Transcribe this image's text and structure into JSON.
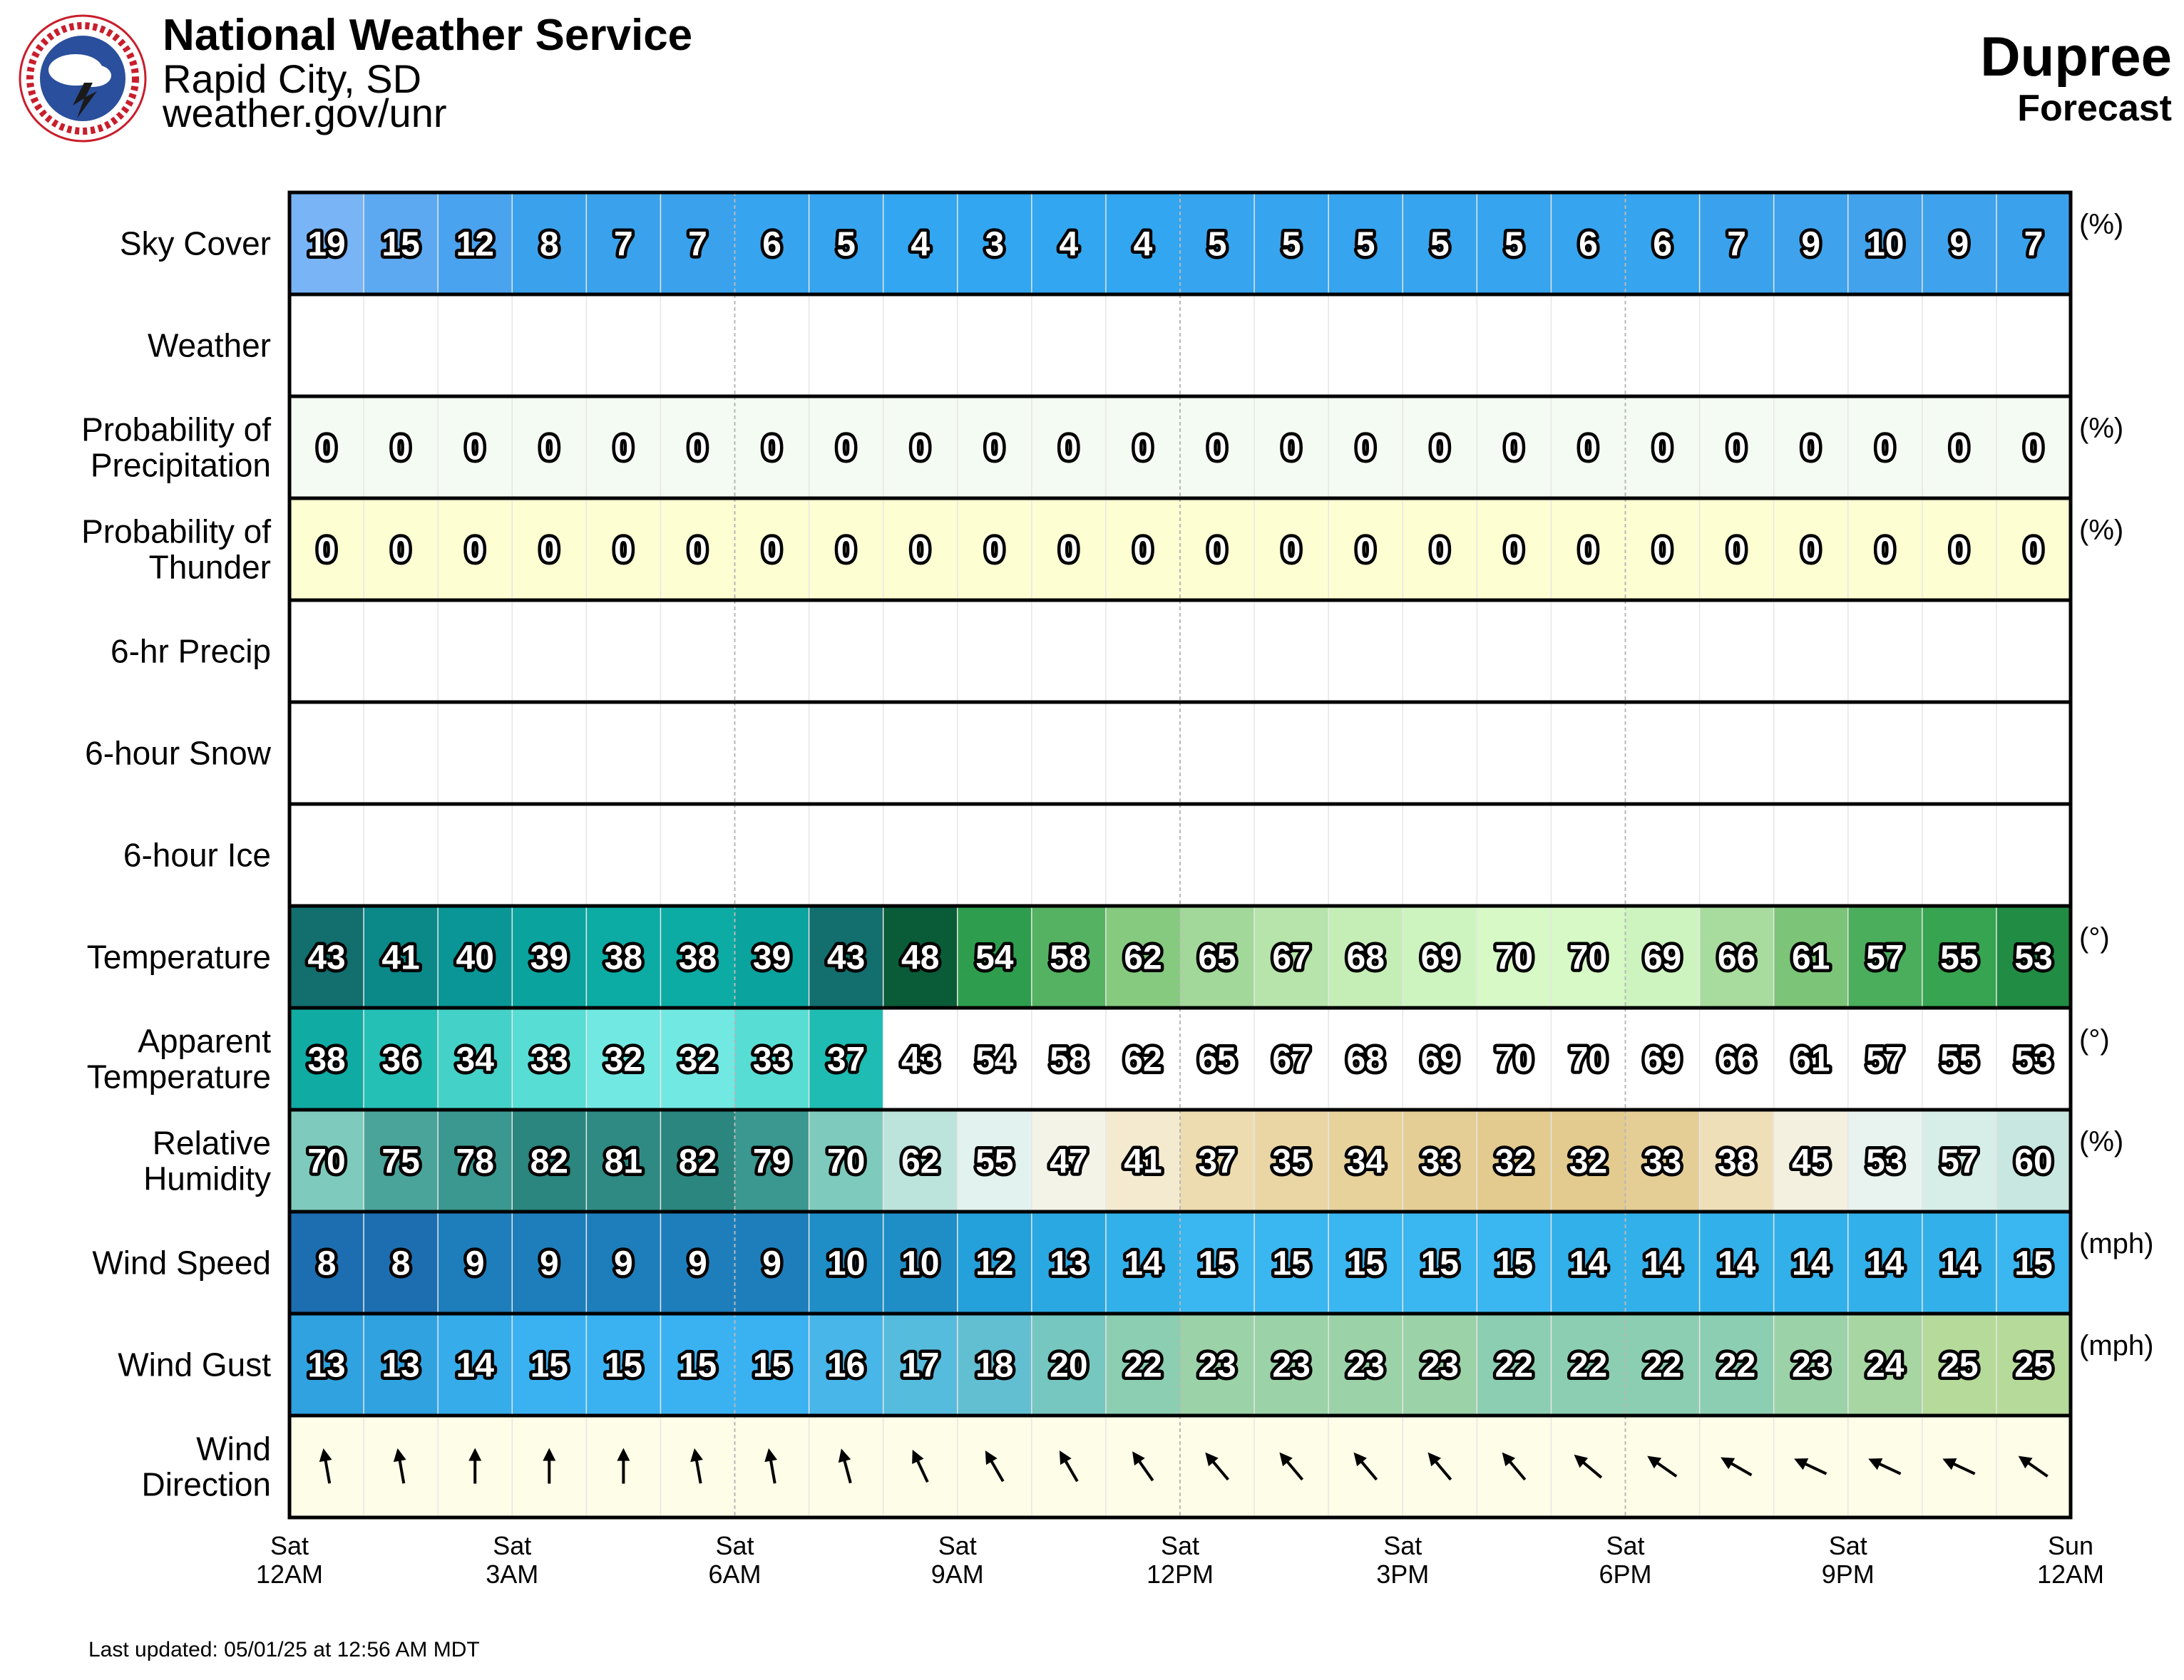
{
  "header": {
    "office": "National Weather Service",
    "city": "Rapid City, SD",
    "url": "weather.gov/unr",
    "location": "Dupree",
    "product": "Forecast"
  },
  "footer": {
    "updated": "Last updated: 05/01/25 at 12:56 AM MDT"
  },
  "chart_data": {
    "type": "table",
    "hours": 24,
    "x_ticks": [
      {
        "day": "Sat",
        "time": "12AM"
      },
      {
        "day": "Sat",
        "time": "3AM"
      },
      {
        "day": "Sat",
        "time": "6AM"
      },
      {
        "day": "Sat",
        "time": "9AM"
      },
      {
        "day": "Sat",
        "time": "12PM"
      },
      {
        "day": "Sat",
        "time": "3PM"
      },
      {
        "day": "Sat",
        "time": "6PM"
      },
      {
        "day": "Sat",
        "time": "9PM"
      },
      {
        "day": "Sun",
        "time": "12AM"
      }
    ],
    "rows": [
      {
        "id": "sky",
        "label": [
          "Sky Cover"
        ],
        "unit": "(%)",
        "values": [
          19,
          15,
          12,
          8,
          7,
          7,
          6,
          5,
          4,
          3,
          4,
          4,
          5,
          5,
          5,
          5,
          5,
          6,
          6,
          7,
          9,
          10,
          9,
          7
        ],
        "colors": [
          "#78b4f6",
          "#5ca9f1",
          "#4aa3ee",
          "#3aa2ec",
          "#3aa2ec",
          "#3aa2ec",
          "#36a4ee",
          "#36a4ee",
          "#32a6f0",
          "#32a6f0",
          "#32a6f0",
          "#32a6f0",
          "#36a4ee",
          "#36a4ee",
          "#36a4ee",
          "#36a4ee",
          "#36a4ee",
          "#36a4ee",
          "#36a4ee",
          "#3aa2ec",
          "#3ea3ec",
          "#42a2ec",
          "#3ea3ec",
          "#3aa2ec"
        ]
      },
      {
        "id": "weather",
        "label": [
          "Weather"
        ],
        "unit": "",
        "values": [],
        "colors": []
      },
      {
        "id": "pop",
        "label": [
          "Probability of",
          "Precipitation"
        ],
        "unit": "(%)",
        "values": [
          0,
          0,
          0,
          0,
          0,
          0,
          0,
          0,
          0,
          0,
          0,
          0,
          0,
          0,
          0,
          0,
          0,
          0,
          0,
          0,
          0,
          0,
          0,
          0
        ],
        "fill": "#f4fbf2"
      },
      {
        "id": "thunder",
        "label": [
          "Probability of",
          "Thunder"
        ],
        "unit": "(%)",
        "values": [
          0,
          0,
          0,
          0,
          0,
          0,
          0,
          0,
          0,
          0,
          0,
          0,
          0,
          0,
          0,
          0,
          0,
          0,
          0,
          0,
          0,
          0,
          0,
          0
        ],
        "fill": "#fdfed2"
      },
      {
        "id": "precip6",
        "label": [
          "6-hr Precip"
        ],
        "unit": "",
        "values": [],
        "colors": []
      },
      {
        "id": "snow6",
        "label": [
          "6-hour Snow"
        ],
        "unit": "",
        "values": [],
        "colors": []
      },
      {
        "id": "ice6",
        "label": [
          "6-hour Ice"
        ],
        "unit": "",
        "values": [],
        "colors": []
      },
      {
        "id": "temp",
        "label": [
          "Temperature"
        ],
        "unit": "(°)",
        "values": [
          43,
          41,
          40,
          39,
          38,
          38,
          39,
          43,
          48,
          54,
          58,
          62,
          65,
          67,
          68,
          69,
          70,
          70,
          69,
          66,
          61,
          57,
          55,
          53
        ],
        "colors": [
          "#136e6e",
          "#0b8888",
          "#0a9696",
          "#0aa39e",
          "#0caba4",
          "#0caba4",
          "#0aa39e",
          "#136e6e",
          "#0a5c38",
          "#2e9e4e",
          "#54b262",
          "#86ca80",
          "#a2d89a",
          "#b6e4aa",
          "#c4eeb6",
          "#cdf4bf",
          "#d6f9c6",
          "#d6f9c6",
          "#cdf4bf",
          "#a8dc9e",
          "#7cc478",
          "#4aae5c",
          "#36a450",
          "#218c44"
        ]
      },
      {
        "id": "apparent",
        "label": [
          "Apparent",
          "Temperature"
        ],
        "unit": "(°)",
        "values": [
          38,
          36,
          34,
          33,
          32,
          32,
          33,
          37,
          43,
          54,
          58,
          62,
          65,
          67,
          68,
          69,
          70,
          70,
          69,
          66,
          61,
          57,
          55,
          53
        ],
        "colors": [
          "#10aca4",
          "#24c0b6",
          "#44d2c8",
          "#58ddd4",
          "#72e8e2",
          "#72e8e2",
          "#58ddd4",
          "#1ebcb2",
          "#ffffff",
          "#ffffff",
          "#ffffff",
          "#ffffff",
          "#ffffff",
          "#ffffff",
          "#ffffff",
          "#ffffff",
          "#ffffff",
          "#ffffff",
          "#ffffff",
          "#ffffff",
          "#ffffff",
          "#ffffff",
          "#ffffff",
          "#ffffff"
        ]
      },
      {
        "id": "rh",
        "label": [
          "Relative",
          "Humidity"
        ],
        "unit": "(%)",
        "values": [
          70,
          75,
          78,
          82,
          81,
          82,
          79,
          70,
          62,
          55,
          47,
          41,
          37,
          35,
          34,
          33,
          32,
          32,
          33,
          38,
          45,
          53,
          57,
          60
        ],
        "colors": [
          "#7ecbbd",
          "#4aa49a",
          "#3a9890",
          "#2a867e",
          "#2e8a82",
          "#2a867e",
          "#3a9890",
          "#7ecbbd",
          "#bce4dd",
          "#e2f2ee",
          "#f3f3e8",
          "#f3ead0",
          "#ecdcb0",
          "#e9d6a4",
          "#e7d29c",
          "#e5ce96",
          "#e3ca8e",
          "#e3ca8e",
          "#e5ce96",
          "#eedfb8",
          "#f4f0e0",
          "#e8f3ef",
          "#d7ede8",
          "#c8e7e1"
        ]
      },
      {
        "id": "wspd",
        "label": [
          "Wind Speed"
        ],
        "unit": "(mph)",
        "values": [
          8,
          8,
          9,
          9,
          9,
          9,
          9,
          10,
          10,
          12,
          13,
          14,
          15,
          15,
          15,
          15,
          15,
          14,
          14,
          14,
          14,
          14,
          14,
          15
        ],
        "colors": [
          "#1d6eb0",
          "#1d6eb0",
          "#1e7ebc",
          "#1e7ebc",
          "#1e7ebc",
          "#1e7ebc",
          "#1e7ebc",
          "#1f8ec6",
          "#1f8ec6",
          "#24a0da",
          "#2aa8e2",
          "#32b0ea",
          "#3ab6f0",
          "#3ab6f0",
          "#3ab6f0",
          "#3ab6f0",
          "#3ab6f0",
          "#32b0ea",
          "#32b0ea",
          "#32b0ea",
          "#32b0ea",
          "#32b0ea",
          "#32b0ea",
          "#3ab6f0"
        ]
      },
      {
        "id": "wgust",
        "label": [
          "Wind Gust"
        ],
        "unit": "(mph)",
        "values": [
          13,
          13,
          14,
          15,
          15,
          15,
          15,
          16,
          17,
          18,
          20,
          22,
          23,
          23,
          23,
          23,
          22,
          22,
          22,
          22,
          23,
          24,
          25,
          25
        ],
        "colors": [
          "#30a2e0",
          "#30a2e0",
          "#36acea",
          "#3ab2f2",
          "#3ab2f2",
          "#3ab2f2",
          "#3ab2f2",
          "#48b6e8",
          "#56bcde",
          "#62bfd2",
          "#76c7c0",
          "#8cceb2",
          "#9cd2a8",
          "#9cd2a8",
          "#9cd2a8",
          "#9cd2a8",
          "#8cceb2",
          "#8cceb2",
          "#8cceb2",
          "#8cceb2",
          "#9cd2a8",
          "#a8d6a2",
          "#b6da9a",
          "#b6da9a"
        ]
      },
      {
        "id": "wdir",
        "label": [
          "Wind",
          "Direction"
        ],
        "unit": "",
        "directions_deg": [
          350,
          350,
          0,
          0,
          0,
          350,
          350,
          345,
          335,
          330,
          330,
          325,
          320,
          320,
          320,
          320,
          320,
          310,
          305,
          300,
          295,
          295,
          295,
          305
        ],
        "fill": "#fdfde8"
      }
    ]
  }
}
